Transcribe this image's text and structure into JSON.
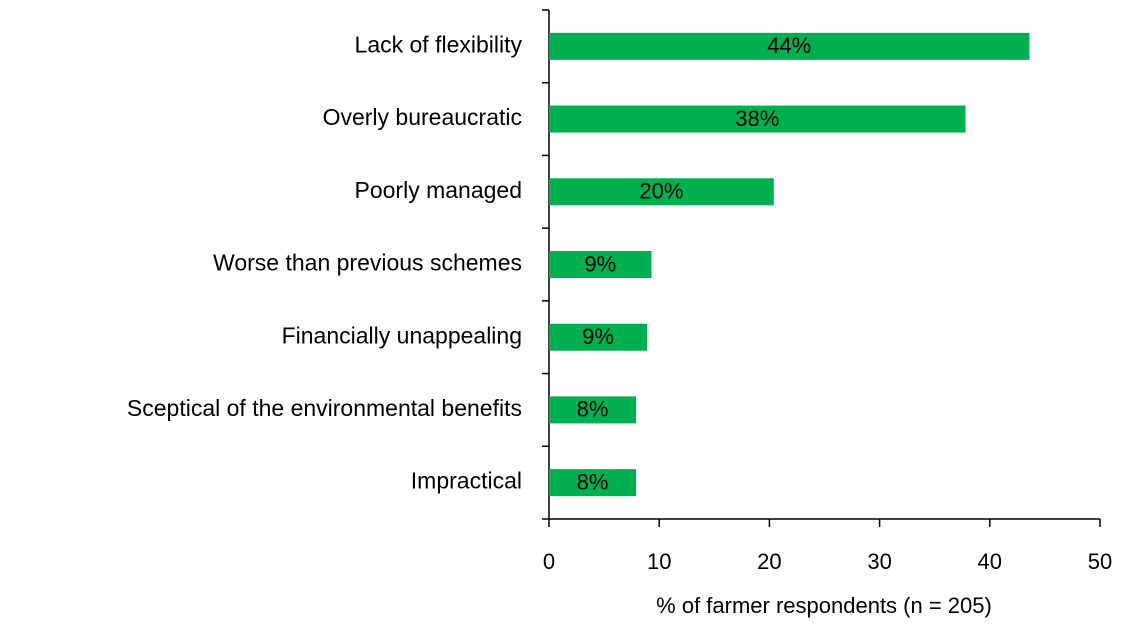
{
  "chart_data": {
    "type": "barh",
    "categories": [
      "Lack of flexibility",
      "Overly bureaucratic",
      "Poorly managed",
      "Worse than previous schemes",
      "Financially unappealing",
      "Sceptical of the environmental benefits",
      "Impractical"
    ],
    "values": [
      43.6,
      37.8,
      20.4,
      9.3,
      8.9,
      7.9,
      7.9
    ],
    "value_labels": [
      "44%",
      "38%",
      "20%",
      "9%",
      "9%",
      "8%",
      "8%"
    ],
    "color": "#00b050",
    "xlabel": "% of farmer respondents (n = 205)",
    "xlim": [
      0,
      50
    ],
    "xticks": [
      0,
      10,
      20,
      30,
      40,
      50
    ],
    "grid": false
  }
}
